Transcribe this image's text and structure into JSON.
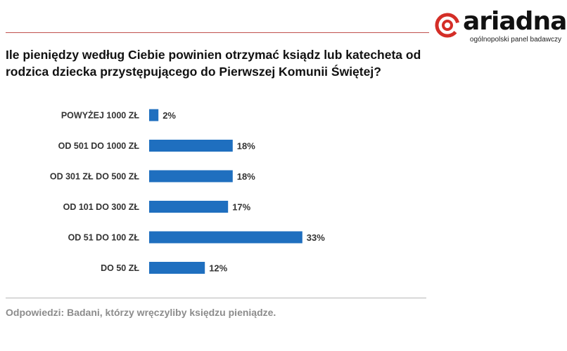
{
  "logo": {
    "wordmark": "ariadna",
    "tagline": "ogólnopolski panel badawczy"
  },
  "colors": {
    "bar": "#1f6fbf",
    "rule": "#c0504d",
    "logo_red": "#d42e27",
    "footnote": "#8c8c8c"
  },
  "chart_data": {
    "type": "bar",
    "orientation": "horizontal",
    "title": "Ile pieniędzy według Ciebie powinien otrzymać ksiądz lub katecheta od rodzica dziecka przystępującego do Pierwszej Komunii Świętej?",
    "categories": [
      "POWYŻEJ 1000 ZŁ",
      "OD 501 DO 1000 ZŁ",
      "OD 301 ZŁ DO 500 ZŁ",
      "OD 101 DO 300 ZŁ",
      "OD 51 DO 100 ZŁ",
      "DO 50 ZŁ"
    ],
    "values": [
      2,
      18,
      18,
      17,
      33,
      12
    ],
    "value_labels": [
      "2%",
      "18%",
      "18%",
      "17%",
      "33%",
      "12%"
    ],
    "unit": "%",
    "xlim": [
      0,
      40
    ],
    "grid": false,
    "legend": "none"
  },
  "footnote": "Odpowiedzi:  Badani, którzy wręczyliby księdzu pieniądze."
}
